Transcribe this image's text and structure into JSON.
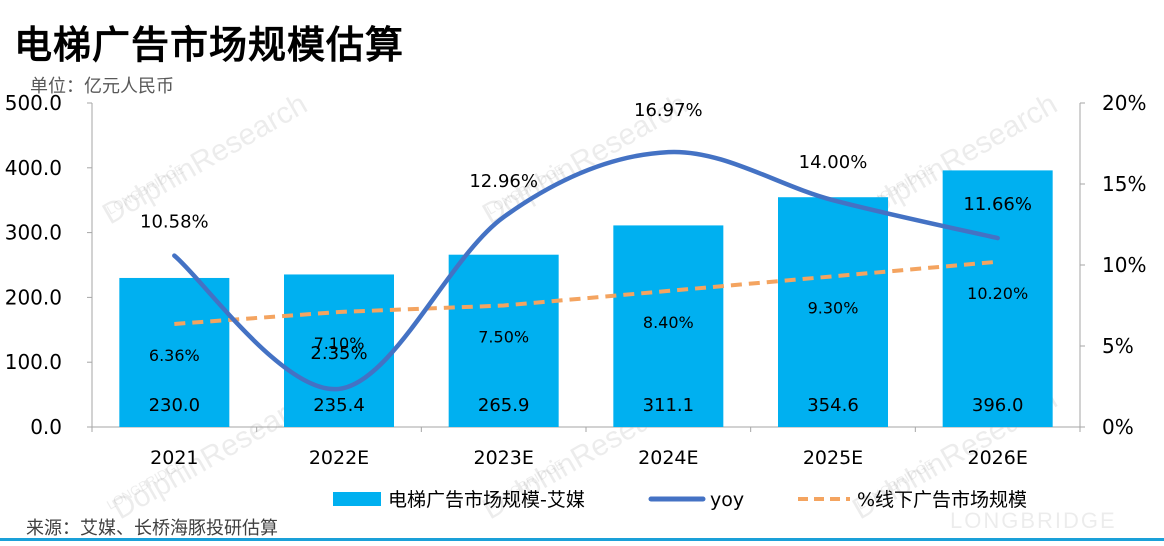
{
  "header": {
    "title": "电梯广告市场规模估算",
    "unit": "单位：亿元人民币"
  },
  "footer": {
    "source": "来源：艾媒、长桥海豚投研估算",
    "watermark_brand": "LONGBRIDGE",
    "watermark_text": "DolphinResearch",
    "watermark_small": "LONGBRIDGE"
  },
  "colors": {
    "bar": "#00B0F0",
    "yoy_line": "#4472C4",
    "offline_line": "#F4A460"
  },
  "chart_data": {
    "type": "bar",
    "categories": [
      "2021",
      "2022E",
      "2023E",
      "2024E",
      "2025E",
      "2026E"
    ],
    "y_left": {
      "lim": [
        0,
        500
      ],
      "ticks": [
        "0.0",
        "100.0",
        "200.0",
        "300.0",
        "400.0",
        "500.0"
      ]
    },
    "y_right": {
      "lim": [
        0,
        20
      ],
      "ticks": [
        "0%",
        "5%",
        "10%",
        "15%",
        "20%"
      ]
    },
    "grid": false,
    "legend_position": "bottom",
    "series": [
      {
        "name": "电梯广告市场规模-艾媒",
        "kind": "bar",
        "axis": "left",
        "values": [
          230.0,
          235.4,
          265.9,
          311.1,
          354.6,
          396.0
        ],
        "labels": [
          "230.0",
          "235.4",
          "265.9",
          "311.1",
          "354.6",
          "396.0"
        ]
      },
      {
        "name": "yoy",
        "kind": "line-smooth",
        "axis": "right",
        "values": [
          10.58,
          2.35,
          12.96,
          16.97,
          14.0,
          11.66
        ],
        "labels": [
          "10.58%",
          "2.35%",
          "12.96%",
          "16.97%",
          "14.00%",
          "11.66%"
        ]
      },
      {
        "name": "%线下广告市场规模",
        "kind": "line-dashed",
        "axis": "right",
        "values": [
          6.36,
          7.1,
          7.5,
          8.4,
          9.3,
          10.2
        ],
        "labels": [
          "6.36%",
          "7.10%",
          "7.50%",
          "8.40%",
          "9.30%",
          "10.20%"
        ]
      }
    ]
  }
}
